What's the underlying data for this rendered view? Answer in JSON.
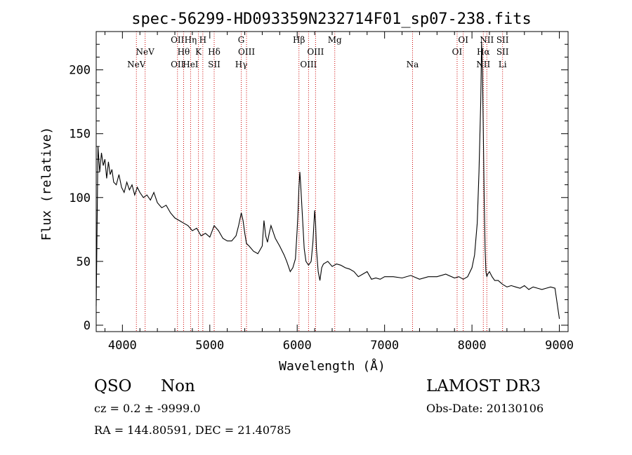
{
  "chart_data": {
    "type": "line",
    "title": "spec-56299-HD093359N232714F01_sp07-238.fits",
    "xlabel": "Wavelength (Å)",
    "ylabel": "Flux (relative)",
    "xlim": [
      3700,
      9100
    ],
    "ylim": [
      -5,
      230
    ],
    "x_ticks": [
      4000,
      5000,
      6000,
      7000,
      8000,
      9000
    ],
    "y_ticks": [
      0,
      50,
      100,
      150,
      200
    ],
    "grid": false,
    "series": [
      {
        "x": [
          3700,
          3720,
          3740,
          3760,
          3780,
          3800,
          3820,
          3840,
          3860,
          3880,
          3900,
          3930,
          3960,
          3990,
          4020,
          4050,
          4080,
          4110,
          4140,
          4170,
          4200,
          4240,
          4280,
          4320,
          4360,
          4400,
          4450,
          4500,
          4550,
          4600,
          4650,
          4700,
          4750,
          4800,
          4850,
          4900,
          4950,
          5000,
          5050,
          5100,
          5150,
          5200,
          5250,
          5300,
          5330,
          5360,
          5380,
          5400,
          5420,
          5450,
          5500,
          5550,
          5600,
          5620,
          5640,
          5660,
          5680,
          5700,
          5750,
          5800,
          5850,
          5880,
          5900,
          5920,
          5950,
          5980,
          6000,
          6010,
          6020,
          6030,
          6040,
          6060,
          6080,
          6100,
          6130,
          6160,
          6180,
          6200,
          6210,
          6220,
          6240,
          6260,
          6280,
          6300,
          6350,
          6400,
          6450,
          6500,
          6550,
          6600,
          6650,
          6700,
          6750,
          6800,
          6850,
          6900,
          6950,
          7000,
          7100,
          7200,
          7300,
          7400,
          7500,
          7600,
          7700,
          7800,
          7850,
          7900,
          7950,
          8000,
          8030,
          8060,
          8080,
          8100,
          8110,
          8120,
          8130,
          8140,
          8150,
          8160,
          8170,
          8180,
          8200,
          8230,
          8260,
          8300,
          8350,
          8400,
          8450,
          8500,
          8550,
          8600,
          8650,
          8700,
          8750,
          8800,
          8850,
          8900,
          8950,
          9000
        ],
        "y": [
          15,
          140,
          120,
          135,
          125,
          130,
          115,
          128,
          118,
          122,
          112,
          110,
          118,
          108,
          104,
          112,
          106,
          110,
          102,
          108,
          104,
          100,
          102,
          98,
          104,
          96,
          92,
          94,
          88,
          84,
          82,
          80,
          78,
          74,
          76,
          70,
          72,
          69,
          78,
          74,
          68,
          66,
          66,
          70,
          78,
          88,
          82,
          72,
          64,
          62,
          58,
          56,
          62,
          82,
          70,
          65,
          72,
          78,
          68,
          62,
          55,
          50,
          46,
          42,
          45,
          52,
          75,
          90,
          108,
          120,
          110,
          85,
          60,
          50,
          47,
          50,
          65,
          90,
          80,
          60,
          42,
          35,
          45,
          48,
          50,
          46,
          48,
          47,
          45,
          44,
          42,
          38,
          40,
          42,
          36,
          37,
          36,
          38,
          38,
          37,
          39,
          36,
          38,
          38,
          40,
          37,
          38,
          36,
          38,
          45,
          55,
          80,
          120,
          175,
          222,
          200,
          150,
          100,
          60,
          42,
          38,
          40,
          42,
          38,
          35,
          35,
          32,
          30,
          31,
          30,
          29,
          31,
          28,
          30,
          29,
          28,
          29,
          30,
          29,
          5
        ]
      }
    ],
    "lines": [
      {
        "w": 4160,
        "top": "",
        "mid": "",
        "bot": "NeV"
      },
      {
        "w": 4260,
        "top": "",
        "mid": "NeV",
        "bot": ""
      },
      {
        "w": 4630,
        "top": "OII",
        "mid": "",
        "bot": "OII"
      },
      {
        "w": 4700,
        "top": "",
        "mid": "Hθ",
        "bot": ""
      },
      {
        "w": 4780,
        "top": "Hη",
        "mid": "",
        "bot": "HeI"
      },
      {
        "w": 4870,
        "top": "",
        "mid": "K",
        "bot": ""
      },
      {
        "w": 4920,
        "top": "H",
        "mid": "",
        "bot": ""
      },
      {
        "w": 5050,
        "top": "",
        "mid": "Hδ",
        "bot": "SII"
      },
      {
        "w": 5360,
        "top": "G",
        "mid": "",
        "bot": "Hγ"
      },
      {
        "w": 5420,
        "top": "",
        "mid": "OIII",
        "bot": ""
      },
      {
        "w": 6020,
        "top": "Hβ",
        "mid": "",
        "bot": ""
      },
      {
        "w": 6130,
        "top": "",
        "mid": "",
        "bot": "OIII"
      },
      {
        "w": 6210,
        "top": "",
        "mid": "OIII",
        "bot": ""
      },
      {
        "w": 6430,
        "top": "Mg",
        "mid": "",
        "bot": ""
      },
      {
        "w": 7320,
        "top": "",
        "mid": "",
        "bot": "Na"
      },
      {
        "w": 7830,
        "top": "",
        "mid": "OI",
        "bot": ""
      },
      {
        "w": 7900,
        "top": "OI",
        "mid": "",
        "bot": ""
      },
      {
        "w": 8130,
        "top": "",
        "mid": "Hα",
        "bot": "NII"
      },
      {
        "w": 8170,
        "top": "NII",
        "mid": "",
        "bot": ""
      },
      {
        "w": 8350,
        "top": "SII",
        "mid": "SII",
        "bot": "Li"
      }
    ]
  },
  "footer": {
    "class_label": "QSO",
    "subclass_label": "Non",
    "cz_text": "cz = 0.2 ± -9999.0",
    "radec_text": "RA = 144.80591, DEC =  21.40785",
    "survey_label": "LAMOST DR3",
    "obsdate_text": "Obs-Date: 20130106"
  },
  "colors": {
    "axis": "#000000",
    "spectrum": "#000000",
    "line_marker": "#cc0000"
  }
}
